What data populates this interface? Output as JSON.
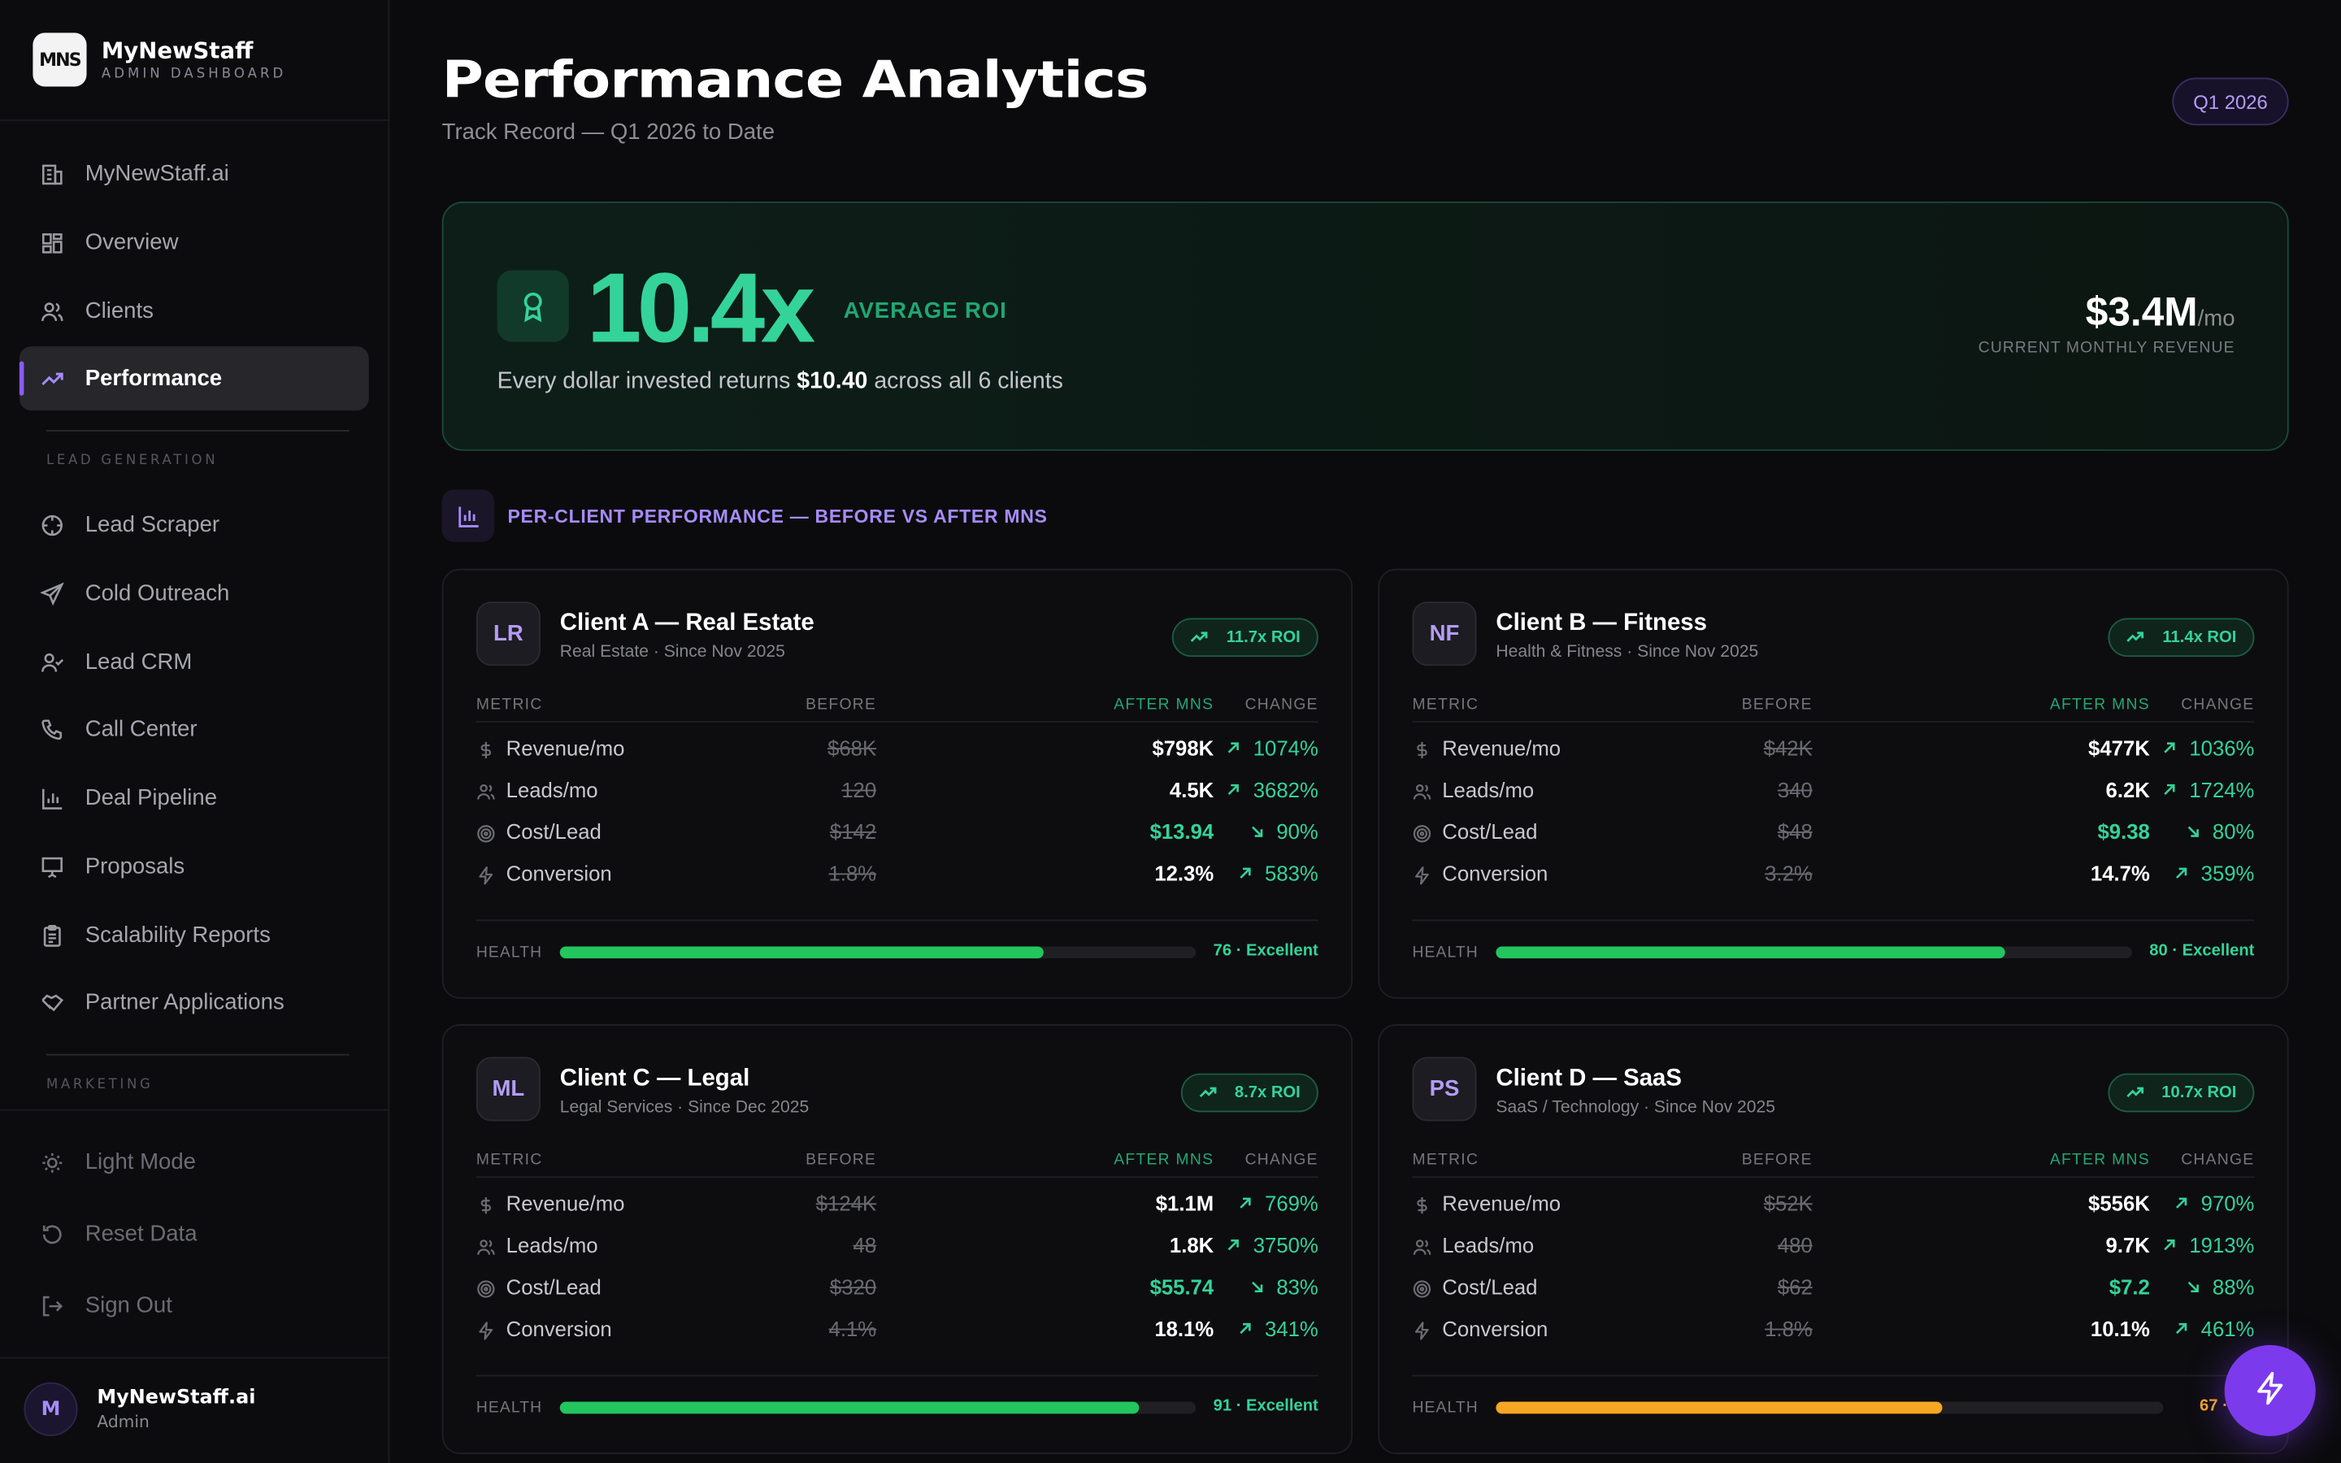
{
  "brand": {
    "logo": "MNS",
    "name": "MyNewStaff",
    "subtitle": "ADMIN DASHBOARD"
  },
  "nav": [
    {
      "label": "MyNewStaff.ai",
      "icon": "building-icon"
    },
    {
      "label": "Overview",
      "icon": "grid-icon"
    },
    {
      "label": "Clients",
      "icon": "users-icon"
    },
    {
      "label": "Performance",
      "icon": "trending-up-icon",
      "active": true
    }
  ],
  "lead_section": {
    "label": "LEAD GENERATION"
  },
  "lead_nav": [
    {
      "label": "Lead Scraper",
      "icon": "crosshair-icon"
    },
    {
      "label": "Cold Outreach",
      "icon": "send-icon"
    },
    {
      "label": "Lead CRM",
      "icon": "user-check-icon"
    },
    {
      "label": "Call Center",
      "icon": "phone-icon"
    },
    {
      "label": "Deal Pipeline",
      "icon": "bar-chart-icon"
    },
    {
      "label": "Proposals",
      "icon": "presentation-icon"
    },
    {
      "label": "Scalability Reports",
      "icon": "clipboard-icon"
    },
    {
      "label": "Partner Applications",
      "icon": "handshake-icon"
    }
  ],
  "marketing_section": {
    "label": "MARKETING"
  },
  "bottom_nav": [
    {
      "label": "Light Mode",
      "icon": "sun-icon"
    },
    {
      "label": "Reset Data",
      "icon": "reset-icon"
    },
    {
      "label": "Sign Out",
      "icon": "sign-out-icon"
    }
  ],
  "user": {
    "initial": "M",
    "name": "MyNewStaff.ai",
    "role": "Admin"
  },
  "header": {
    "title": "Performance Analytics",
    "subtitle": "Track Record — Q1 2026 to Date",
    "period": "Q1 2026"
  },
  "hero": {
    "roi": "10.4x",
    "roi_label": "AVERAGE ROI",
    "text_before": "Every dollar invested returns ",
    "text_amount": "$10.40",
    "text_after": " across all 6 clients",
    "revenue": "$3.4M",
    "revenue_unit": "/mo",
    "revenue_label": "CURRENT MONTHLY REVENUE"
  },
  "section": {
    "title": "PER-CLIENT PERFORMANCE — BEFORE VS AFTER MNS"
  },
  "table_headers": {
    "metric": "METRIC",
    "before": "BEFORE",
    "after": "AFTER MNS",
    "change": "CHANGE"
  },
  "health_label": "HEALTH",
  "clients": [
    {
      "initials": "LR",
      "name": "Client A — Real Estate",
      "sub": "Real Estate · Since Nov 2025",
      "roi": "11.7x ROI",
      "metrics": [
        {
          "name": "Revenue/mo",
          "icon": "dollar-icon",
          "before": "$68K",
          "after": "$798K",
          "change": "1074%"
        },
        {
          "name": "Leads/mo",
          "icon": "users-icon",
          "before": "120",
          "after": "4.5K",
          "change": "3682%"
        },
        {
          "name": "Cost/Lead",
          "icon": "target-icon",
          "before": "$142",
          "after": "$13.94",
          "change": "90%"
        },
        {
          "name": "Conversion",
          "icon": "zap-icon",
          "before": "1.8%",
          "after": "12.3%",
          "change": "583%"
        }
      ],
      "health": 76,
      "health_text": "76 · Excellent",
      "health_color": "#22c55e"
    },
    {
      "initials": "NF",
      "name": "Client B — Fitness",
      "sub": "Health & Fitness · Since Nov 2025",
      "roi": "11.4x ROI",
      "metrics": [
        {
          "name": "Revenue/mo",
          "icon": "dollar-icon",
          "before": "$42K",
          "after": "$477K",
          "change": "1036%"
        },
        {
          "name": "Leads/mo",
          "icon": "users-icon",
          "before": "340",
          "after": "6.2K",
          "change": "1724%"
        },
        {
          "name": "Cost/Lead",
          "icon": "target-icon",
          "before": "$48",
          "after": "$9.38",
          "change": "80%"
        },
        {
          "name": "Conversion",
          "icon": "zap-icon",
          "before": "3.2%",
          "after": "14.7%",
          "change": "359%"
        }
      ],
      "health": 80,
      "health_text": "80 · Excellent",
      "health_color": "#22c55e"
    },
    {
      "initials": "ML",
      "name": "Client C — Legal",
      "sub": "Legal Services · Since Dec 2025",
      "roi": "8.7x ROI",
      "metrics": [
        {
          "name": "Revenue/mo",
          "icon": "dollar-icon",
          "before": "$124K",
          "after": "$1.1M",
          "change": "769%"
        },
        {
          "name": "Leads/mo",
          "icon": "users-icon",
          "before": "48",
          "after": "1.8K",
          "change": "3750%"
        },
        {
          "name": "Cost/Lead",
          "icon": "target-icon",
          "before": "$320",
          "after": "$55.74",
          "change": "83%"
        },
        {
          "name": "Conversion",
          "icon": "zap-icon",
          "before": "4.1%",
          "after": "18.1%",
          "change": "341%"
        }
      ],
      "health": 91,
      "health_text": "91 · Excellent",
      "health_color": "#22c55e"
    },
    {
      "initials": "PS",
      "name": "Client D — SaaS",
      "sub": "SaaS / Technology · Since Nov 2025",
      "roi": "10.7x ROI",
      "metrics": [
        {
          "name": "Revenue/mo",
          "icon": "dollar-icon",
          "before": "$52K",
          "after": "$556K",
          "change": "970%"
        },
        {
          "name": "Leads/mo",
          "icon": "users-icon",
          "before": "480",
          "after": "9.7K",
          "change": "1913%"
        },
        {
          "name": "Cost/Lead",
          "icon": "target-icon",
          "before": "$62",
          "after": "$7.2",
          "change": "88%"
        },
        {
          "name": "Conversion",
          "icon": "zap-icon",
          "before": "1.8%",
          "after": "10.1%",
          "change": "461%"
        }
      ],
      "health": 67,
      "health_text": "67 · Gc",
      "health_color": "#f5a623"
    }
  ],
  "fab": {
    "icon": "zap-icon"
  }
}
